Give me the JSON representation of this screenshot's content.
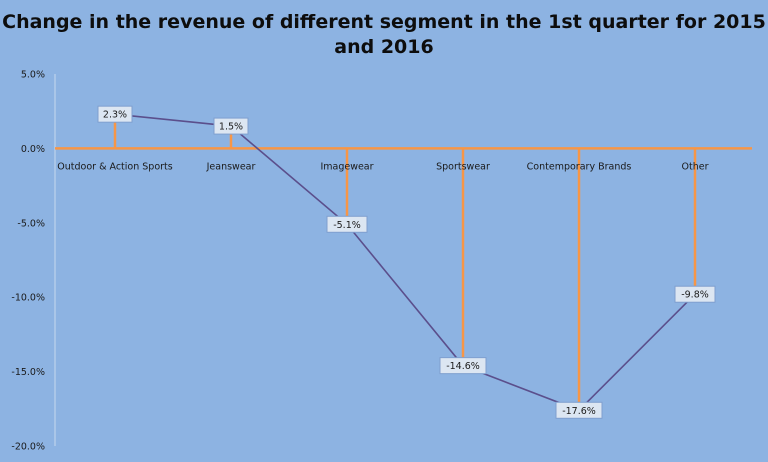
{
  "chart_data": {
    "type": "line",
    "title_lines": [
      "Change in the revenue of different segment in the 1st quarter for 2015",
      "and 2016"
    ],
    "categories": [
      "Outdoor & Action Sports",
      "Jeanswear",
      "Imagewear",
      "Sportswear",
      "Contemporary Brands",
      "Other"
    ],
    "values": [
      2.3,
      1.5,
      -5.1,
      -14.6,
      -17.6,
      -9.8
    ],
    "data_labels": [
      "2.3%",
      "1.5%",
      "-5.1%",
      "-14.6%",
      "-17.6%",
      "-9.8%"
    ],
    "ylim": [
      -20,
      5
    ],
    "yticks": [
      5,
      0,
      -5,
      -10,
      -15,
      -20
    ],
    "ytick_labels": [
      "5.0%",
      "0.0%",
      "-5.0%",
      "-10.0%",
      "-15.0%",
      "-20.0%"
    ],
    "grid": false,
    "drop_lines": true,
    "legend": "none",
    "colors": {
      "background": "#8db3e2",
      "line": "#5b4f8c",
      "drop_line": "#f79646",
      "zero_axis": "#f79646",
      "value_axis": "#c6d9ef",
      "label_box_fill": "#dce6f2",
      "label_box_border": "#7f9fcf"
    }
  }
}
